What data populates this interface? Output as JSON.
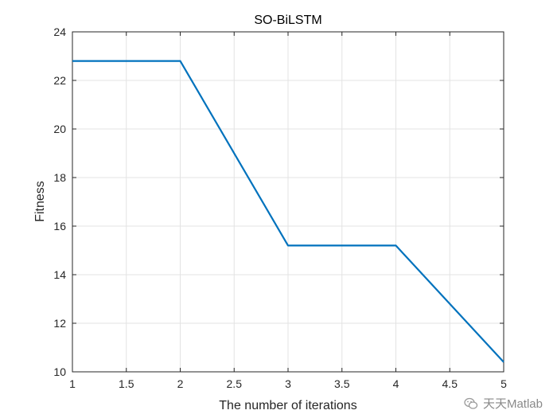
{
  "chart_data": {
    "type": "line",
    "title": "SO-BiLSTM",
    "xlabel": "The number of iterations",
    "ylabel": "Fitness",
    "xlim": [
      1,
      5
    ],
    "ylim": [
      10,
      24
    ],
    "xticks": [
      1,
      1.5,
      2,
      2.5,
      3,
      3.5,
      4,
      4.5,
      5
    ],
    "xtick_labels": [
      "1",
      "1.5",
      "2",
      "2.5",
      "3",
      "3.5",
      "4",
      "4.5",
      "5"
    ],
    "yticks": [
      10,
      12,
      14,
      16,
      18,
      20,
      22,
      24
    ],
    "ytick_labels": [
      "10",
      "12",
      "14",
      "16",
      "18",
      "20",
      "22",
      "24"
    ],
    "grid": true,
    "series": [
      {
        "x": [
          1,
          2,
          3,
          4,
          5
        ],
        "values": [
          22.8,
          22.8,
          15.2,
          15.2,
          10.4
        ],
        "color": "#0072BD"
      }
    ]
  },
  "watermark": {
    "text": "天天Matlab",
    "icon": "wechat-icon"
  }
}
